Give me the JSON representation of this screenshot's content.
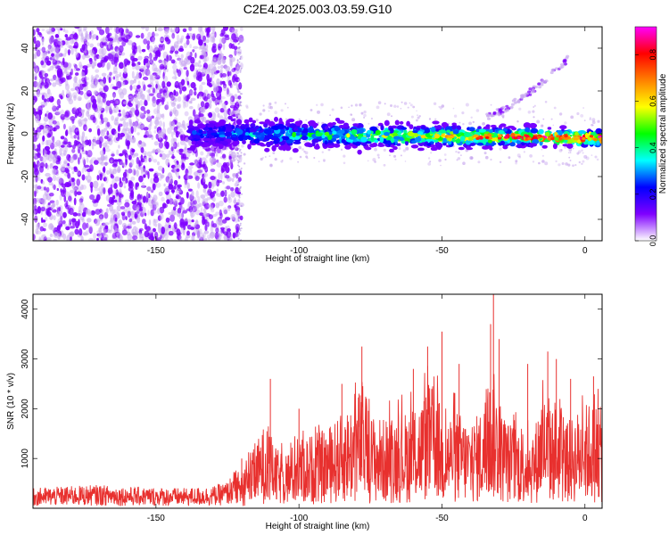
{
  "title": "C2E4.2025.003.03.59.G10",
  "chart_data": [
    {
      "type": "heatmap",
      "title": "C2E4.2025.003.03.59.G10",
      "xlabel": "Height of straight line (km)",
      "ylabel": "Frequency (Hz)",
      "xlim": [
        -193,
        6
      ],
      "ylim": [
        -50,
        50
      ],
      "xticks": [
        -150,
        -100,
        -50,
        0
      ],
      "yticks": [
        -40,
        -20,
        0,
        20,
        40
      ],
      "xtick_labels": [
        "-150",
        "-100",
        "-50",
        "0"
      ],
      "ytick_labels": [
        "-40",
        "-20",
        "0",
        "20",
        "40"
      ],
      "colorbar": {
        "label": "Normalized spectral amplitude",
        "range": [
          0,
          0.92
        ],
        "ticks": [
          0,
          0.2,
          0.4,
          0.6,
          0.8
        ],
        "tick_labels": [
          "0.0",
          "0.2",
          "0.4",
          "0.6",
          "0.8"
        ],
        "colormap": [
          "#ffffff",
          "#7f00ff",
          "#0000ff",
          "#00ffff",
          "#00ff00",
          "#ffff00",
          "#ff8000",
          "#ff0000",
          "#ff00ff"
        ]
      },
      "grid": false,
      "features": [
        {
          "label": "noise region",
          "x_range": [
            -193,
            -122
          ],
          "freq_range": [
            -50,
            50
          ],
          "amplitude": 0.1
        },
        {
          "label": "signal band",
          "x_range": [
            -138,
            6
          ],
          "freq_center_start": 0,
          "freq_center_end": -2,
          "amplitude_start": 0.2,
          "amplitude_end": 0.8
        },
        {
          "label": "rising trace",
          "x_range": [
            -35,
            -6
          ],
          "freq_range": [
            8,
            35
          ],
          "amplitude": 0.15
        }
      ]
    },
    {
      "type": "line",
      "xlabel": "Height of straight line (km)",
      "ylabel": "SNR (10 * v/v)",
      "xlim": [
        -193,
        6
      ],
      "ylim": [
        0,
        4300
      ],
      "xticks": [
        -150,
        -100,
        -50,
        0
      ],
      "yticks": [
        1000,
        2000,
        3000,
        4000
      ],
      "xtick_labels": [
        "-150",
        "-100",
        "-50",
        "0"
      ],
      "ytick_labels": [
        "1000",
        "2000",
        "3000",
        "4000"
      ],
      "grid": false,
      "color": "#e8302e",
      "series": [
        {
          "values_description_free": true,
          "x": [
            -193,
            -180,
            -170,
            -160,
            -150,
            -140,
            -130,
            -125,
            -122,
            -118,
            -115,
            -112,
            -110,
            -108,
            -105,
            -100,
            -95,
            -90,
            -85,
            -80,
            -78,
            -75,
            -70,
            -65,
            -60,
            -55,
            -52,
            -50,
            -48,
            -45,
            -40,
            -35,
            -32,
            -30,
            -28,
            -25,
            -20,
            -18,
            -15,
            -12,
            -10,
            -8,
            -5,
            -2,
            0,
            3,
            6
          ],
          "y": [
            300,
            330,
            350,
            320,
            310,
            300,
            330,
            400,
            600,
            900,
            1300,
            1700,
            1500,
            1200,
            1100,
            1400,
            1500,
            1600,
            1900,
            2200,
            2600,
            1900,
            1800,
            1900,
            2000,
            2400,
            2600,
            1800,
            1900,
            2000,
            1700,
            2100,
            2800,
            2000,
            1800,
            1700,
            1600,
            1500,
            2400,
            2000,
            2300,
            1700,
            1800,
            2000,
            2100,
            2200,
            2000
          ]
        }
      ],
      "peaks": [
        {
          "x": -120,
          "y": 1000
        },
        {
          "x": -110,
          "y": 2600
        },
        {
          "x": -100,
          "y": 2000
        },
        {
          "x": -85,
          "y": 2500
        },
        {
          "x": -78,
          "y": 3250
        },
        {
          "x": -60,
          "y": 2800
        },
        {
          "x": -55,
          "y": 3250
        },
        {
          "x": -50,
          "y": 3550
        },
        {
          "x": -44,
          "y": 2900
        },
        {
          "x": -33,
          "y": 3700
        },
        {
          "x": -32,
          "y": 4300
        },
        {
          "x": -30,
          "y": 3400
        },
        {
          "x": -20,
          "y": 2900
        },
        {
          "x": -13,
          "y": 3150
        },
        {
          "x": -10,
          "y": 3000
        },
        {
          "x": -5,
          "y": 2600
        },
        {
          "x": 3,
          "y": 2650
        }
      ]
    }
  ]
}
